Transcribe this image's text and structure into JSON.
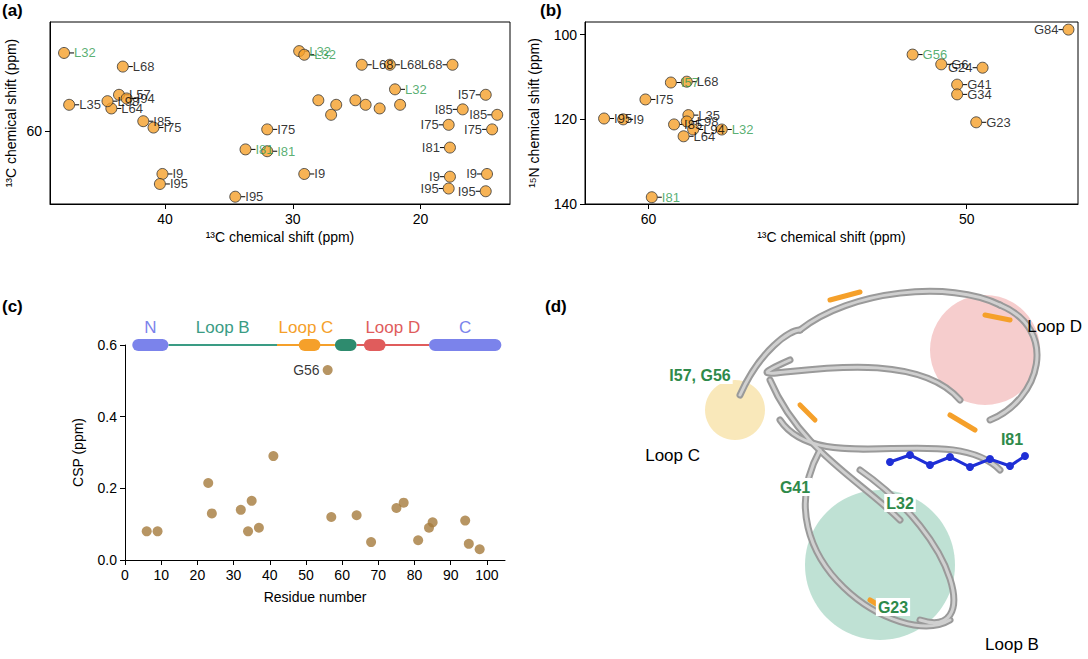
{
  "chart_data": [
    {
      "title": "(a)",
      "type": "scatter",
      "x_label": "¹³C chemical shift (ppm)",
      "y_label": "¹³C chemical shift (ppm)",
      "xlim": [
        49,
        13
      ],
      "ylim": [
        68,
        48
      ],
      "xticks": [
        40,
        30,
        20
      ],
      "yticks": [
        60
      ],
      "color": "#f5a02a",
      "points": [
        {
          "x": 47.9,
          "y": 51.4,
          "label": "L32",
          "color": "#2e9a4e"
        },
        {
          "x": 43.3,
          "y": 52.9,
          "label": "L68",
          "color": "#000000"
        },
        {
          "x": 47.5,
          "y": 57.1,
          "label": "L35",
          "color": "#000000"
        },
        {
          "x": 43.6,
          "y": 56.0,
          "label": "L57",
          "color": "#000000"
        },
        {
          "x": 44.2,
          "y": 57.5,
          "label": "L64",
          "color": "#000000"
        },
        {
          "x": 43.0,
          "y": 56.4,
          "label": "I94",
          "color": "#000000"
        },
        {
          "x": 44.5,
          "y": 56.7,
          "label": "L98",
          "color": "#000000"
        },
        {
          "x": 41.7,
          "y": 58.9,
          "label": "I85",
          "color": "#000000"
        },
        {
          "x": 40.9,
          "y": 59.6,
          "label": "I75",
          "color": "#000000"
        },
        {
          "x": 33.7,
          "y": 62.0,
          "label": "I81",
          "color": "#2e9a4e"
        },
        {
          "x": 40.2,
          "y": 64.7,
          "label": "I9",
          "color": "#000000"
        },
        {
          "x": 40.4,
          "y": 65.8,
          "label": "I95",
          "color": "#000000"
        },
        {
          "x": 29.5,
          "y": 51.2,
          "label": "L32",
          "color": "#2e9a4e"
        },
        {
          "x": 29.1,
          "y": 51.6,
          "label": "L32",
          "color": "#2e9a4e"
        },
        {
          "x": 24.6,
          "y": 52.7,
          "label": "L68",
          "color": "#000000"
        },
        {
          "x": 22.4,
          "y": 52.7,
          "label": "L68",
          "color": "#000000"
        },
        {
          "x": 22.0,
          "y": 55.4,
          "label": "L32",
          "color": "#2e9a4e"
        },
        {
          "x": 28.0,
          "y": 56.6,
          "label": null,
          "color": "#000000"
        },
        {
          "x": 26.6,
          "y": 57.1,
          "label": null,
          "color": "#000000"
        },
        {
          "x": 25.1,
          "y": 56.6,
          "label": null,
          "color": "#000000"
        },
        {
          "x": 24.3,
          "y": 57.1,
          "label": null,
          "color": "#000000"
        },
        {
          "x": 23.2,
          "y": 57.5,
          "label": null,
          "color": "#000000"
        },
        {
          "x": 21.6,
          "y": 57.1,
          "label": null,
          "color": "#000000"
        },
        {
          "x": 27.0,
          "y": 58.2,
          "label": null,
          "color": "#000000"
        },
        {
          "x": 32.0,
          "y": 59.8,
          "label": "I75",
          "color": "#000000"
        },
        {
          "x": 32.0,
          "y": 62.2,
          "label": "I81",
          "color": "#2e9a4e"
        },
        {
          "x": 29.1,
          "y": 64.7,
          "label": "I9",
          "color": "#000000"
        },
        {
          "x": 34.5,
          "y": 67.2,
          "label": "I95",
          "color": "#000000"
        },
        {
          "x": 17.5,
          "y": 52.7,
          "label": "L68",
          "color": "#000000"
        },
        {
          "x": 16.7,
          "y": 57.6,
          "label": "I85",
          "color": "#000000"
        },
        {
          "x": 17.8,
          "y": 59.3,
          "label": "I75",
          "color": "#000000"
        },
        {
          "x": 17.7,
          "y": 61.8,
          "label": "I81",
          "color": "#000000"
        },
        {
          "x": 14.9,
          "y": 56.0,
          "label": "I57",
          "color": "#000000"
        },
        {
          "x": 14.0,
          "y": 58.2,
          "label": "I85",
          "color": "#000000"
        },
        {
          "x": 14.4,
          "y": 59.8,
          "label": "I75",
          "color": "#000000"
        },
        {
          "x": 17.7,
          "y": 65.0,
          "label": "I9",
          "color": "#000000"
        },
        {
          "x": 14.8,
          "y": 64.7,
          "label": "I9",
          "color": "#000000"
        },
        {
          "x": 17.8,
          "y": 66.3,
          "label": "I95",
          "color": "#000000"
        },
        {
          "x": 14.9,
          "y": 66.6,
          "label": "I95",
          "color": "#000000"
        }
      ]
    },
    {
      "title": "(b)",
      "type": "scatter",
      "x_label": "¹³C chemical shift (ppm)",
      "y_label": "¹⁵N chemical shift (ppm)",
      "xlim": [
        62,
        46.5
      ],
      "ylim": [
        140,
        97
      ],
      "xticks": [
        60,
        50
      ],
      "yticks": [
        100,
        120,
        140
      ],
      "color": "#f5a02a",
      "points": [
        {
          "x": 61.4,
          "y": 119.8,
          "label": "I95",
          "color": "#000000"
        },
        {
          "x": 60.8,
          "y": 120.0,
          "label": "I9",
          "color": "#000000"
        },
        {
          "x": 60.1,
          "y": 115.3,
          "label": "I75",
          "color": "#000000"
        },
        {
          "x": 59.3,
          "y": 111.3,
          "label": "I57",
          "color": "#2e9a4e"
        },
        {
          "x": 58.8,
          "y": 111.1,
          "label": "L68",
          "color": "#000000"
        },
        {
          "x": 58.75,
          "y": 119.0,
          "label": "L35",
          "color": "#000000"
        },
        {
          "x": 58.8,
          "y": 120.5,
          "label": "L98",
          "color": "#000000"
        },
        {
          "x": 59.2,
          "y": 121.2,
          "label": "I85",
          "color": "#000000"
        },
        {
          "x": 58.6,
          "y": 122.4,
          "label": "L94",
          "color": "#000000"
        },
        {
          "x": 58.9,
          "y": 124.0,
          "label": "L64",
          "color": "#000000"
        },
        {
          "x": 57.7,
          "y": 122.4,
          "label": "L32",
          "color": "#2e9a4e"
        },
        {
          "x": 59.9,
          "y": 138.4,
          "label": "I81",
          "color": "#2e9a4e"
        },
        {
          "x": 51.7,
          "y": 104.7,
          "label": "G56",
          "color": "#2e9a4e"
        },
        {
          "x": 46.8,
          "y": 98.8,
          "label": "G84",
          "color": "#000000"
        },
        {
          "x": 50.8,
          "y": 107.0,
          "label": "G6",
          "color": "#000000"
        },
        {
          "x": 49.5,
          "y": 107.8,
          "label": "G24",
          "color": "#000000"
        },
        {
          "x": 50.3,
          "y": 111.8,
          "label": "G41",
          "color": "#000000"
        },
        {
          "x": 50.3,
          "y": 114.1,
          "label": "G34",
          "color": "#000000"
        },
        {
          "x": 49.7,
          "y": 120.7,
          "label": "G23",
          "color": "#000000"
        }
      ]
    },
    {
      "title": "(c)",
      "type": "scatter",
      "x_label": "Residue number",
      "y_label": "CSP (ppm)",
      "xlim": [
        0,
        105
      ],
      "ylim": [
        0,
        0.6
      ],
      "xticks": [
        0,
        10,
        20,
        30,
        40,
        50,
        60,
        70,
        80,
        90,
        100
      ],
      "yticks": [
        {
          "value": 0,
          "label": "0.0"
        },
        {
          "value": 0.2,
          "label": "0.2"
        },
        {
          "value": 0.4,
          "label": "0.4"
        },
        {
          "value": 0.6,
          "label": "0.6"
        }
      ],
      "color": "#a57a3c",
      "x": [
        6,
        9,
        23,
        24,
        32,
        34,
        35,
        37,
        41,
        56,
        57,
        64,
        68,
        75,
        77,
        81,
        84,
        85,
        94,
        95,
        98
      ],
      "values": [
        0.08,
        0.08,
        0.215,
        0.13,
        0.14,
        0.08,
        0.165,
        0.09,
        0.29,
        0.53,
        0.12,
        0.125,
        0.05,
        0.145,
        0.16,
        0.055,
        0.09,
        0.105,
        0.11,
        0.045,
        0.03
      ],
      "annotations": [
        {
          "text": "G56",
          "x": 56,
          "y": 0.53
        }
      ],
      "domains": [
        {
          "type": "line",
          "start": 12,
          "end": 42,
          "color": "#3a9c84",
          "label": "Loop B"
        },
        {
          "type": "line",
          "start": 42,
          "end": 58,
          "color": "#f5a02a",
          "label": "Loop C"
        },
        {
          "type": "line",
          "start": 64,
          "end": 84,
          "color": "#e05c5c",
          "label": "Loop D"
        },
        {
          "type": "box",
          "start": 2,
          "end": 12,
          "color": "#7b83eb",
          "label": "N"
        },
        {
          "type": "box",
          "start": 48,
          "end": 54,
          "color": "#f5a02a",
          "label": null
        },
        {
          "type": "box",
          "start": 58,
          "end": 64,
          "color": "#2e8b6e",
          "label": null
        },
        {
          "type": "box",
          "start": 66,
          "end": 72,
          "color": "#e05c5c",
          "label": null
        },
        {
          "type": "box",
          "start": 84,
          "end": 104,
          "color": "#7b83eb",
          "label": "C"
        }
      ]
    }
  ],
  "structure": {
    "title": "(d)",
    "color": "#2e8a4a",
    "regions": [
      {
        "label": "Loop D",
        "color": "#f4c4c4"
      },
      {
        "label": "Loop C",
        "color": "#f8e4ae"
      },
      {
        "label": "Loop B",
        "color": "#b4dccd"
      }
    ],
    "residues": [
      "I57, G56",
      "I81",
      "G41",
      "L32",
      "G23"
    ]
  }
}
